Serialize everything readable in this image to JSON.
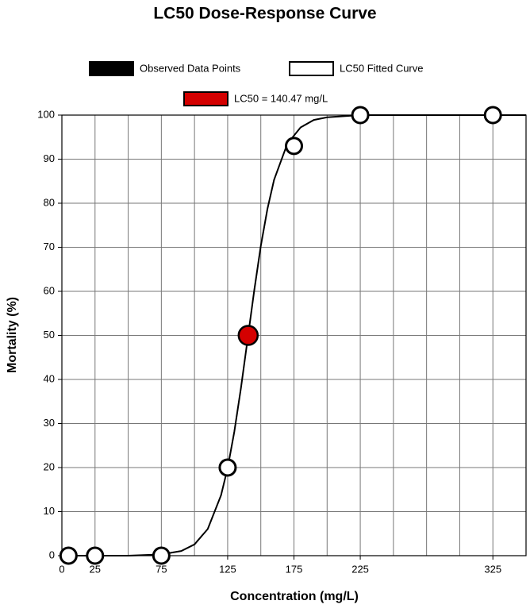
{
  "chart_data": {
    "type": "scatter",
    "title": "LC50 Dose-Response Curve",
    "xlabel": "Concentration (mg/L)",
    "ylabel": "Mortality (%)",
    "xlim": [
      0,
      350
    ],
    "ylim": [
      0,
      100
    ],
    "xticks": [
      0,
      25,
      75,
      125,
      175,
      225,
      325
    ],
    "x_grid_lines": [
      0,
      25,
      50,
      75,
      100,
      125,
      150,
      175,
      200,
      225,
      250,
      275,
      300,
      325,
      350
    ],
    "yticks": [
      0,
      10,
      20,
      30,
      40,
      50,
      60,
      70,
      80,
      90,
      100
    ],
    "grid": true,
    "series": [
      {
        "name": "Observed Data Points",
        "color": "#000000",
        "marker_fill": "#ffffff",
        "x": [
          5,
          25,
          75,
          125,
          175,
          225,
          325
        ],
        "values": [
          0,
          0,
          0,
          20,
          93,
          100,
          100
        ]
      },
      {
        "name": "LC50 Fitted Curve",
        "color": "#000000",
        "legend_fill": "#ffffff",
        "x": [
          0,
          50,
          75,
          90,
          100,
          110,
          120,
          125,
          130,
          135,
          140,
          145,
          150,
          155,
          160,
          170,
          180,
          190,
          200,
          225,
          250,
          300,
          350
        ],
        "values": [
          0,
          0,
          0.3,
          1.05,
          2.56,
          6.06,
          13.7,
          19.9,
          28.1,
          38.0,
          49.0,
          60.1,
          70.3,
          78.7,
          85.3,
          93.5,
          97.2,
          98.9,
          99.5,
          100,
          100,
          100,
          100
        ]
      },
      {
        "name": "LC50 = 140.47 mg/L",
        "color": "#d40000",
        "x": [
          140.47
        ],
        "values": [
          50
        ]
      }
    ]
  }
}
